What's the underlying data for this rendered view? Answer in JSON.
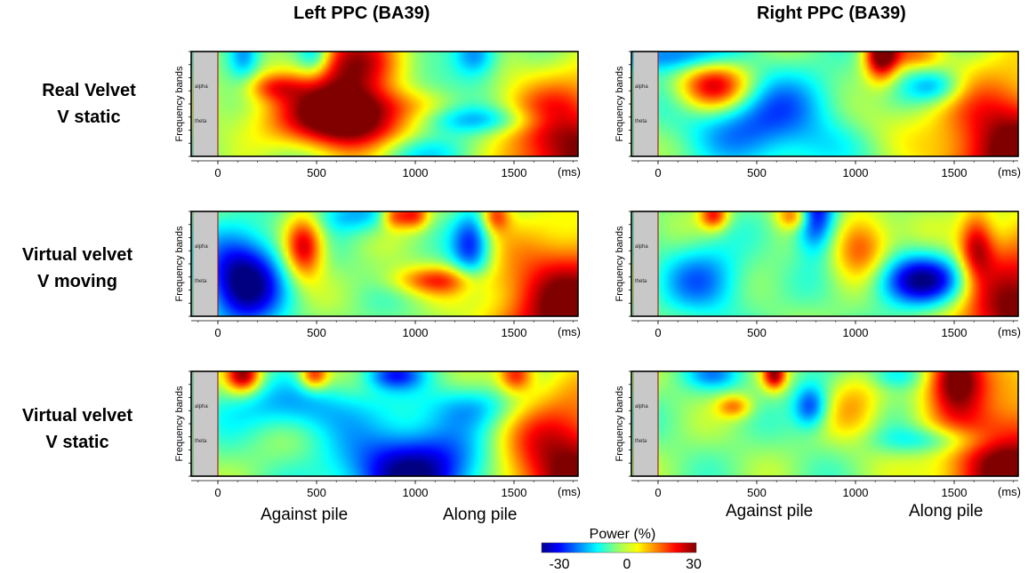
{
  "chart_data": {
    "type": "heatmap",
    "colorbar": {
      "label": "Power (%)",
      "min": -30,
      "max": 30,
      "ticks": [
        "-30",
        "0",
        "30"
      ],
      "colormap": "jet"
    },
    "columns": [
      {
        "id": "left",
        "title": "Left PPC (BA39)"
      },
      {
        "id": "right",
        "title": "Right PPC (BA39)"
      }
    ],
    "rows": [
      {
        "id": "r0",
        "label_lines": [
          "Real Velvet",
          "V static"
        ]
      },
      {
        "id": "r1",
        "label_lines": [
          "Virtual velvet",
          "V moving"
        ]
      },
      {
        "id": "r2",
        "label_lines": [
          "Virtual velvet",
          "V static"
        ]
      }
    ],
    "x_axis": {
      "ticks": [
        0,
        500,
        1000,
        1500
      ],
      "unit": "(ms)",
      "range": [
        -100,
        1800
      ]
    },
    "y_axis": {
      "label": "Frequency bands",
      "band_labels": [
        "alpha",
        "theta"
      ]
    },
    "condition_labels": [
      "Against pile",
      "Along pile"
    ],
    "panels": [
      {
        "row": "r0",
        "col": "left",
        "blobs": [
          {
            "t": 700,
            "band": "alpha",
            "v": 30,
            "w": 180,
            "h": 0.45
          },
          {
            "t": 600,
            "band": "theta",
            "v": 22,
            "w": 300,
            "h": 0.28
          },
          {
            "t": 300,
            "band": "alpha",
            "v": 14,
            "w": 100,
            "h": 0.1
          },
          {
            "t": 150,
            "band": "top",
            "v": -18,
            "w": 60,
            "h": 0.18
          },
          {
            "t": 500,
            "band": "top",
            "v": -16,
            "w": 60,
            "h": 0.15
          },
          {
            "t": 880,
            "band": "alpha",
            "v": -10,
            "w": 250,
            "h": 0.15
          },
          {
            "t": 1300,
            "band": "theta",
            "v": -14,
            "w": 250,
            "h": 0.1
          },
          {
            "t": 1300,
            "band": "top",
            "v": -18,
            "w": 80,
            "h": 0.15
          },
          {
            "t": 1750,
            "band": "bottom",
            "v": 32,
            "w": 240,
            "h": 0.5
          },
          {
            "t": 900,
            "band": "bottom",
            "v": -12,
            "w": 400,
            "h": 0.15
          }
        ]
      },
      {
        "row": "r0",
        "col": "right",
        "blobs": [
          {
            "t": 300,
            "band": "alpha",
            "v": 28,
            "w": 130,
            "h": 0.18
          },
          {
            "t": 1130,
            "band": "top",
            "v": 32,
            "w": 60,
            "h": 0.18
          },
          {
            "t": 600,
            "band": "theta",
            "v": -20,
            "w": 300,
            "h": 0.3
          },
          {
            "t": 100,
            "band": "top",
            "v": -18,
            "w": 200,
            "h": 0.12
          },
          {
            "t": 1400,
            "band": "alpha",
            "v": -15,
            "w": 100,
            "h": 0.12
          },
          {
            "t": 1750,
            "band": "bottom",
            "v": 32,
            "w": 240,
            "h": 0.55
          },
          {
            "t": 1000,
            "band": "theta",
            "v": 8,
            "w": 200,
            "h": 0.2
          },
          {
            "t": 1300,
            "band": "top",
            "v": 12,
            "w": 100,
            "h": 0.1
          }
        ]
      },
      {
        "row": "r1",
        "col": "left",
        "blobs": [
          {
            "t": 150,
            "band": "theta",
            "v": -32,
            "w": 140,
            "h": 0.32
          },
          {
            "t": 450,
            "band": "alpha",
            "v": 28,
            "w": 70,
            "h": 0.22
          },
          {
            "t": 1100,
            "band": "theta",
            "v": 18,
            "w": 150,
            "h": 0.1
          },
          {
            "t": 1280,
            "band": "alpha",
            "v": -22,
            "w": 70,
            "h": 0.25
          },
          {
            "t": 700,
            "band": "top",
            "v": -12,
            "w": 150,
            "h": 0.12
          },
          {
            "t": 1750,
            "band": "bottom",
            "v": 32,
            "w": 260,
            "h": 0.55
          },
          {
            "t": 900,
            "band": "top",
            "v": 20,
            "w": 50,
            "h": 0.1
          },
          {
            "t": 1000,
            "band": "top",
            "v": 20,
            "w": 50,
            "h": 0.1
          },
          {
            "t": 1400,
            "band": "top",
            "v": 18,
            "w": 50,
            "h": 0.12
          }
        ]
      },
      {
        "row": "r1",
        "col": "right",
        "blobs": [
          {
            "t": 800,
            "band": "top",
            "v": -28,
            "w": 70,
            "h": 0.25
          },
          {
            "t": 1350,
            "band": "theta",
            "v": -30,
            "w": 180,
            "h": 0.18
          },
          {
            "t": 250,
            "band": "theta",
            "v": -15,
            "w": 150,
            "h": 0.25
          },
          {
            "t": 1030,
            "band": "alpha",
            "v": 20,
            "w": 100,
            "h": 0.25
          },
          {
            "t": 1800,
            "band": "bottom",
            "v": 32,
            "w": 220,
            "h": 0.55
          },
          {
            "t": 1600,
            "band": "alpha",
            "v": 20,
            "w": 60,
            "h": 0.25
          },
          {
            "t": 300,
            "band": "top",
            "v": 22,
            "w": 50,
            "h": 0.1
          },
          {
            "t": 700,
            "band": "top",
            "v": 20,
            "w": 60,
            "h": 0.1
          }
        ]
      },
      {
        "row": "r2",
        "col": "left",
        "blobs": [
          {
            "t": 1000,
            "band": "bottom",
            "v": -30,
            "w": 260,
            "h": 0.32
          },
          {
            "t": 400,
            "band": "alpha",
            "v": -12,
            "w": 280,
            "h": 0.18
          },
          {
            "t": 150,
            "band": "top",
            "v": 28,
            "w": 60,
            "h": 0.12
          },
          {
            "t": 1300,
            "band": "alpha",
            "v": -12,
            "w": 150,
            "h": 0.15
          },
          {
            "t": 1750,
            "band": "bottom",
            "v": 32,
            "w": 240,
            "h": 0.55
          },
          {
            "t": 500,
            "band": "top",
            "v": 22,
            "w": 50,
            "h": 0.1
          },
          {
            "t": 1500,
            "band": "top",
            "v": 20,
            "w": 60,
            "h": 0.12
          },
          {
            "t": 900,
            "band": "top",
            "v": -18,
            "w": 100,
            "h": 0.1
          }
        ]
      },
      {
        "row": "r2",
        "col": "right",
        "blobs": [
          {
            "t": 1500,
            "band": "top",
            "v": 32,
            "w": 100,
            "h": 0.25
          },
          {
            "t": 780,
            "band": "alpha",
            "v": -20,
            "w": 60,
            "h": 0.15
          },
          {
            "t": 1000,
            "band": "alpha",
            "v": 12,
            "w": 100,
            "h": 0.25
          },
          {
            "t": 400,
            "band": "alpha",
            "v": 15,
            "w": 60,
            "h": 0.08
          },
          {
            "t": 1400,
            "band": "theta",
            "v": -12,
            "w": 200,
            "h": 0.1
          },
          {
            "t": 1750,
            "band": "bottom",
            "v": 32,
            "w": 240,
            "h": 0.55
          },
          {
            "t": 600,
            "band": "top",
            "v": 26,
            "w": 40,
            "h": 0.1
          },
          {
            "t": 300,
            "band": "top",
            "v": -12,
            "w": 100,
            "h": 0.1
          },
          {
            "t": 1200,
            "band": "top",
            "v": -12,
            "w": 100,
            "h": 0.1
          }
        ]
      }
    ]
  }
}
